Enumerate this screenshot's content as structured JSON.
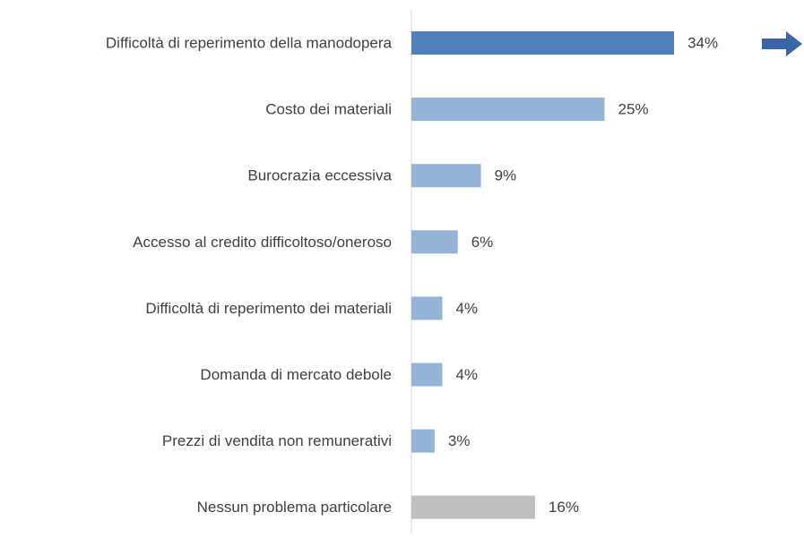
{
  "chart_data": {
    "type": "barh",
    "categories": [
      "Difficoltà di reperimento della manodopera",
      "Costo dei materiali",
      "Burocrazia eccessiva",
      "Accesso al credito difficoltoso/oneroso",
      "Difficoltà di reperimento dei materiali",
      "Domanda di mercato debole",
      "Prezzi di vendita non remunerativi",
      "Nessun problema particolare"
    ],
    "values": [
      34,
      25,
      9,
      6,
      4,
      4,
      3,
      16
    ],
    "value_labels": [
      "34%",
      "25%",
      "9%",
      "6%",
      "4%",
      "4%",
      "3%",
      "16%"
    ],
    "colors": [
      "#4f81bd",
      "#95b3d7",
      "#95b3d7",
      "#95b3d7",
      "#95b3d7",
      "#95b3d7",
      "#95b3d7",
      "#bfbfbf"
    ]
  }
}
